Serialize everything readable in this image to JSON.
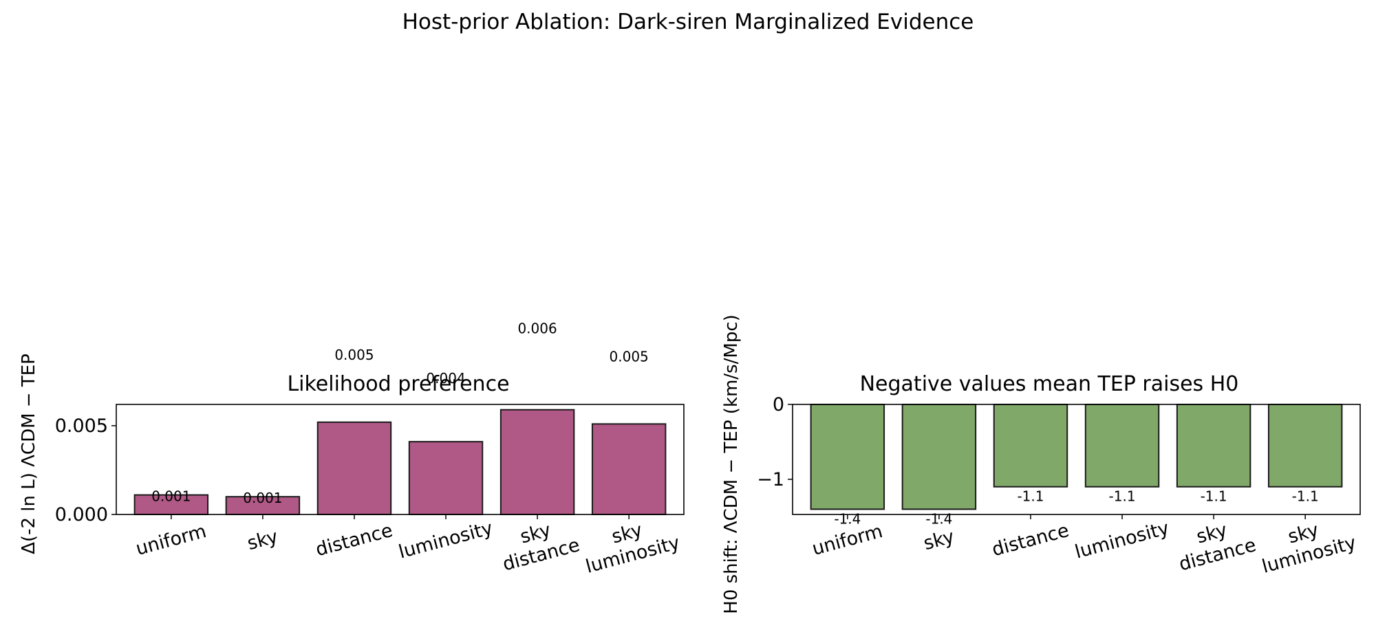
{
  "suptitle": "Host-prior Ablation: Dark-siren Marginalized Evidence",
  "colors": {
    "left_bar": "#b05986",
    "right_bar": "#80a869",
    "edge": "#1a1a1a"
  },
  "chart_data": [
    {
      "type": "bar",
      "title": "Likelihood preference",
      "ylabel": "Δ(-2 ln L)  ΛCDM − TEP",
      "xlabel": "",
      "categories": [
        "uniform",
        "sky",
        "distance",
        "luminosity",
        "sky\ndistance",
        "sky\nluminosity"
      ],
      "values": [
        0.0011,
        0.001,
        0.0052,
        0.0041,
        0.0059,
        0.0051
      ],
      "value_labels": [
        "0.001",
        "0.001",
        "0.005",
        "0.004",
        "0.006",
        "0.005"
      ],
      "ylim": [
        0,
        0.0062
      ],
      "yticks": [
        0,
        0.005
      ],
      "ytick_labels": [
        "0.000",
        "0.005"
      ],
      "grid": false
    },
    {
      "type": "bar",
      "title": "Negative values mean TEP raises H0",
      "ylabel": "H0 shift: ΛCDM − TEP (km/s/Mpc)",
      "xlabel": "",
      "categories": [
        "uniform",
        "sky",
        "distance",
        "luminosity",
        "sky\ndistance",
        "sky\nluminosity"
      ],
      "values": [
        -1.4,
        -1.4,
        -1.1,
        -1.1,
        -1.1,
        -1.1
      ],
      "value_labels": [
        "-1.4",
        "-1.4",
        "-1.1",
        "-1.1",
        "-1.1",
        "-1.1"
      ],
      "ylim": [
        -1.47,
        0
      ],
      "yticks": [
        0,
        -1
      ],
      "ytick_labels": [
        "0",
        "−1"
      ],
      "grid": false
    }
  ]
}
